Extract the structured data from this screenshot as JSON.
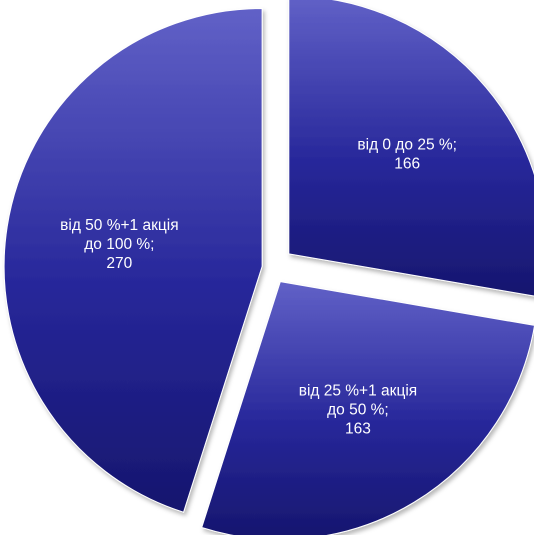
{
  "chart_data": {
    "type": "pie",
    "exploded": true,
    "slices": [
      {
        "label_lines": [
          "від 0 до 25 %;",
          "166"
        ],
        "category": "від 0 до 25 %",
        "value": 166
      },
      {
        "label_lines": [
          "від 25 %+1 акція",
          "до 50 %;",
          "163"
        ],
        "category": "від 25 %+1 акція до 50 %",
        "value": 163
      },
      {
        "label_lines": [
          "від 50 %+1 акція",
          "до 100 %;",
          "270"
        ],
        "category": "від 50 %+1 акція до 100 %",
        "value": 270
      }
    ],
    "colors": {
      "slice_top": "#6161c7",
      "slice_mid": "#27279a",
      "slice_bottom": "#16166e",
      "label_text": "#ffffff"
    },
    "legend": "none",
    "title": ""
  }
}
